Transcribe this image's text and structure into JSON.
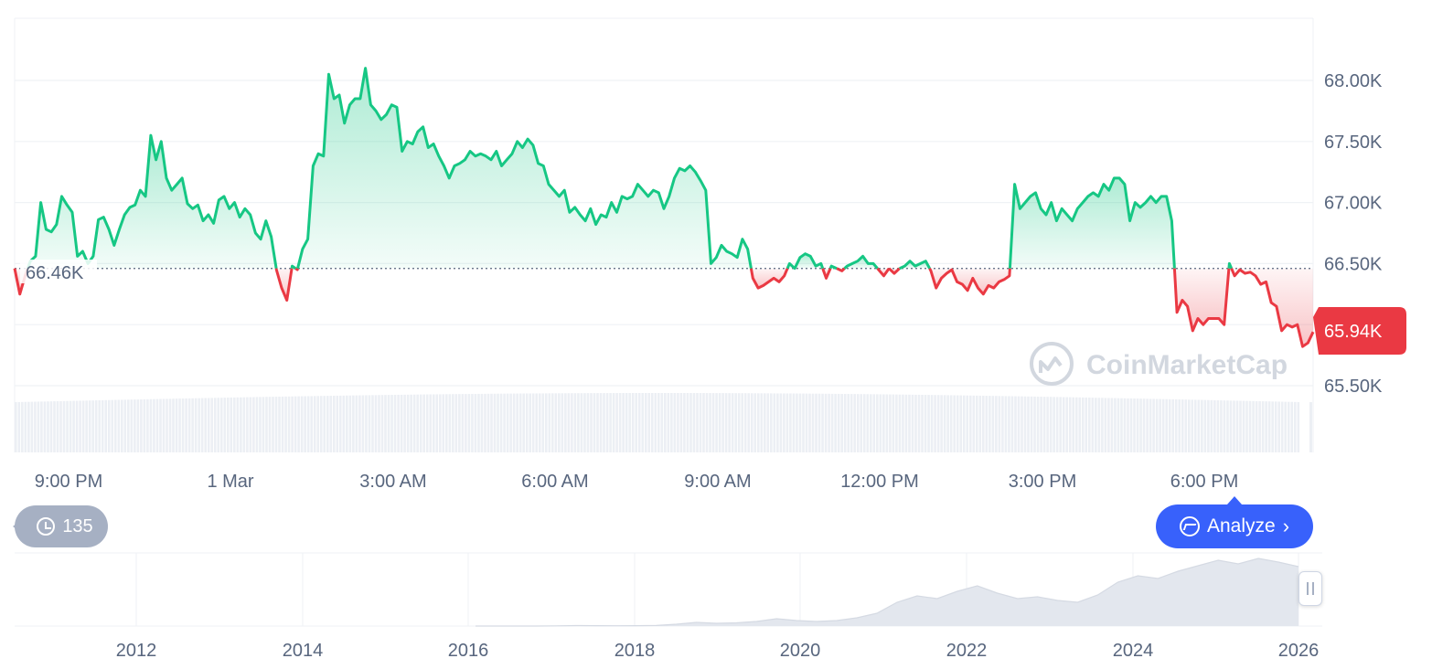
{
  "chart_data": {
    "type": "line",
    "y_axis": {
      "ticks": [
        "68.00K",
        "67.50K",
        "67.00K",
        "66.50K",
        "65.50K"
      ],
      "tick_values": [
        68000,
        67500,
        67000,
        66500,
        65500
      ],
      "range": [
        65500,
        68500
      ]
    },
    "x_axis": {
      "ticks": [
        "9:00 PM",
        "1 Mar",
        "3:00 AM",
        "6:00 AM",
        "9:00 AM",
        "12:00 PM",
        "3:00 PM",
        "6:00 PM"
      ]
    },
    "reference_price": {
      "label": "66.46K",
      "value": 66460
    },
    "current_price": {
      "label": "65.94K",
      "value": 65940
    },
    "colors": {
      "up": "#16c784",
      "down": "#ea3943",
      "badge": "#ea3943",
      "analyze": "#3861fb",
      "history": "#a6b0c3"
    },
    "series": [
      {
        "values": [
          66460,
          66250,
          66400,
          66520,
          66560,
          67000,
          66780,
          66760,
          66820,
          67050,
          66980,
          66920,
          66560,
          66600,
          66500,
          66560,
          66860,
          66880,
          66780,
          66650,
          66780,
          66900,
          66960,
          66980,
          67100,
          67050,
          67550,
          67350,
          67500,
          67200,
          67100,
          67150,
          67200,
          66990,
          66950,
          66980,
          66850,
          66900,
          66830,
          67020,
          67050,
          66950,
          67000,
          66880,
          66950,
          66900,
          66750,
          66700,
          66850,
          66720,
          66450,
          66300,
          66200,
          66480,
          66450,
          66620,
          66700,
          67300,
          67400,
          67380,
          68050,
          67850,
          67880,
          67650,
          67800,
          67850,
          67850,
          68100,
          67800,
          67750,
          67680,
          67720,
          67800,
          67780,
          67420,
          67500,
          67480,
          67580,
          67620,
          67450,
          67480,
          67380,
          67300,
          67200,
          67300,
          67320,
          67350,
          67420,
          67380,
          67400,
          67380,
          67350,
          67420,
          67300,
          67350,
          67400,
          67500,
          67450,
          67520,
          67470,
          67320,
          67300,
          67150,
          67100,
          67050,
          67100,
          66920,
          66960,
          66900,
          66850,
          66950,
          66820,
          66900,
          66880,
          67000,
          66920,
          67050,
          67030,
          67050,
          67150,
          67100,
          67050,
          67100,
          67080,
          66950,
          67050,
          67200,
          67280,
          67260,
          67300,
          67250,
          67180,
          67100,
          66500,
          66550,
          66650,
          66600,
          66580,
          66550,
          66700,
          66620,
          66380,
          66300,
          66320,
          66350,
          66380,
          66350,
          66400,
          66500,
          66460,
          66550,
          66580,
          66560,
          66480,
          66500,
          66380,
          66480,
          66460,
          66440,
          66480,
          66500,
          66520,
          66560,
          66500,
          66500,
          66450,
          66400,
          66460,
          66420,
          66460,
          66480,
          66520,
          66480,
          66500,
          66520,
          66440,
          66300,
          66380,
          66420,
          66450,
          66350,
          66330,
          66280,
          66380,
          66300,
          66250,
          66320,
          66300,
          66350,
          66370,
          66400,
          67150,
          66950,
          67000,
          67050,
          67080,
          66950,
          66900,
          67000,
          66850,
          66950,
          66900,
          66850,
          66950,
          67000,
          67050,
          67080,
          67050,
          67150,
          67100,
          67200,
          67200,
          67150,
          66850,
          67000,
          66960,
          67000,
          67050,
          67000,
          67050,
          67050,
          66850,
          66100,
          66200,
          66150,
          65950,
          66050,
          66000,
          66050,
          66050,
          66050,
          66000,
          66500,
          66400,
          66450,
          66420,
          66430,
          66400,
          66330,
          66350,
          66180,
          66150,
          65950,
          66000,
          65980,
          66000,
          65820,
          65850,
          65940
        ]
      }
    ],
    "navigator": {
      "ticks": [
        "2012",
        "2014",
        "2016",
        "2018",
        "2020",
        "2022",
        "2024",
        "2026"
      ]
    }
  },
  "watermark": "CoinMarketCap",
  "history_badge": {
    "count": "135",
    "icon": "history-icon"
  },
  "analyze_button": {
    "label": "Analyze",
    "icon": "analyze-icon",
    "chevron": "›"
  }
}
